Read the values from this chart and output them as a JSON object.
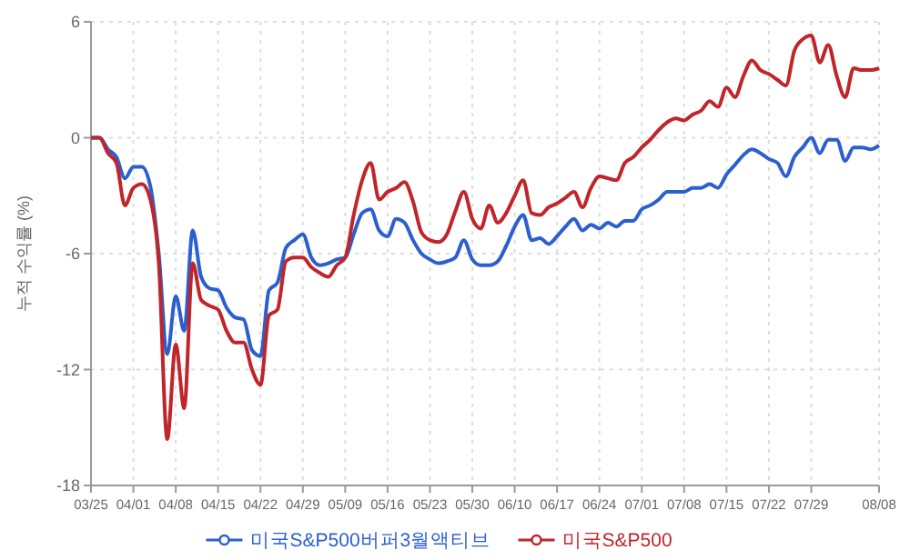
{
  "chart_data": {
    "type": "line",
    "ylabel": "누적 수익률 (%)",
    "categories": [
      "03/25",
      null,
      null,
      null,
      null,
      "04/01",
      null,
      null,
      null,
      null,
      "04/08",
      null,
      null,
      null,
      null,
      "04/15",
      null,
      null,
      null,
      null,
      "04/22",
      null,
      null,
      null,
      null,
      "04/29",
      null,
      null,
      null,
      null,
      "05/09",
      null,
      null,
      null,
      null,
      "05/16",
      null,
      null,
      null,
      null,
      "05/23",
      null,
      null,
      null,
      null,
      "05/30",
      null,
      null,
      null,
      null,
      "06/10",
      null,
      null,
      null,
      null,
      "06/17",
      null,
      null,
      null,
      null,
      "06/24",
      null,
      null,
      null,
      null,
      "07/01",
      null,
      null,
      null,
      null,
      "07/08",
      null,
      null,
      null,
      null,
      "07/15",
      null,
      null,
      null,
      null,
      "07/22",
      null,
      null,
      null,
      null,
      "07/29",
      null,
      null,
      null,
      null,
      null,
      null,
      null,
      "08/08"
    ],
    "series": [
      {
        "name": "미국S&P500버퍼3월액티브",
        "color": "#2b5fd0",
        "values": [
          0,
          0,
          -0.6,
          -1.0,
          -2.1,
          -1.5,
          -1.5,
          -2.5,
          -6.0,
          -11.2,
          -8.2,
          -10.0,
          -4.8,
          -7.2,
          -7.8,
          -7.9,
          -8.8,
          -9.3,
          -9.4,
          -11.0,
          -11.3,
          -7.9,
          -7.5,
          -5.7,
          -5.3,
          -5.0,
          -6.2,
          -6.6,
          -6.5,
          -6.3,
          -6.2,
          -5.0,
          -3.9,
          -3.7,
          -4.8,
          -5.1,
          -4.2,
          -4.4,
          -5.3,
          -6.0,
          -6.3,
          -6.5,
          -6.4,
          -6.2,
          -5.3,
          -6.3,
          -6.6,
          -6.6,
          -6.4,
          -5.6,
          -4.6,
          -4.0,
          -5.3,
          -5.2,
          -5.5,
          -5.1,
          -4.6,
          -4.2,
          -4.8,
          -4.5,
          -4.7,
          -4.4,
          -4.6,
          -4.3,
          -4.3,
          -3.7,
          -3.5,
          -3.2,
          -2.8,
          -2.8,
          -2.8,
          -2.6,
          -2.6,
          -2.4,
          -2.6,
          -1.9,
          -1.4,
          -0.9,
          -0.6,
          -0.8,
          -1.1,
          -1.3,
          -2.0,
          -1.0,
          -0.5,
          0.0,
          -0.8,
          -0.1,
          -0.1,
          -1.2,
          -0.5,
          -0.5,
          -0.6,
          -0.4
        ]
      },
      {
        "name": "미국S&P500",
        "color": "#c0252a",
        "values": [
          0,
          0,
          -0.8,
          -1.3,
          -3.5,
          -2.6,
          -2.4,
          -3.2,
          -6.5,
          -15.6,
          -10.7,
          -14.0,
          -6.5,
          -8.4,
          -8.7,
          -8.9,
          -10.0,
          -10.6,
          -10.6,
          -12.0,
          -12.8,
          -9.2,
          -8.9,
          -6.4,
          -6.2,
          -6.2,
          -6.7,
          -7.0,
          -7.2,
          -6.6,
          -6.2,
          -4.0,
          -2.2,
          -1.3,
          -3.2,
          -2.8,
          -2.6,
          -2.3,
          -3.3,
          -4.9,
          -5.3,
          -5.4,
          -5.0,
          -3.8,
          -2.8,
          -4.2,
          -4.7,
          -3.5,
          -4.4,
          -3.9,
          -3.0,
          -2.2,
          -3.9,
          -4.0,
          -3.6,
          -3.4,
          -3.1,
          -2.8,
          -3.6,
          -2.6,
          -2.0,
          -2.1,
          -2.2,
          -1.3,
          -1.0,
          -0.5,
          -0.1,
          0.4,
          0.8,
          1.0,
          0.9,
          1.2,
          1.4,
          1.9,
          1.6,
          2.6,
          2.1,
          3.2,
          4.0,
          3.5,
          3.3,
          3.0,
          2.7,
          4.5,
          5.1,
          5.3,
          3.9,
          4.8,
          3.2,
          2.1,
          3.6,
          3.5,
          3.5,
          3.6
        ]
      }
    ],
    "ylim": [
      -18,
      6
    ],
    "yticks": [
      -18,
      -12,
      -6,
      0,
      6
    ],
    "grid": true,
    "legend": "bottom"
  }
}
